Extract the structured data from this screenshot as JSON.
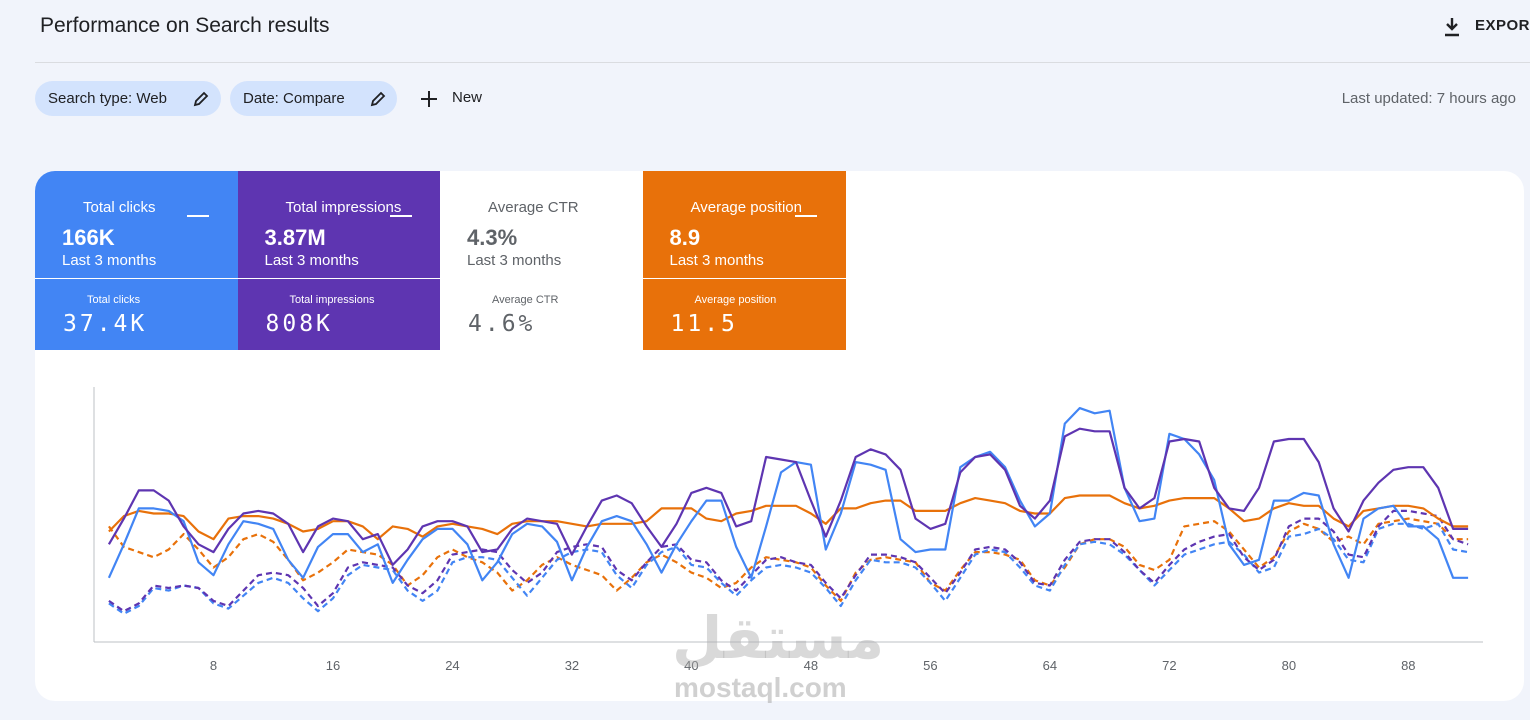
{
  "header": {
    "title": "Performance on Search results",
    "export": "EXPORT",
    "last_updated": "Last updated: 7 hours ago"
  },
  "filters": {
    "chips": [
      "Search type: Web",
      "Date: Compare"
    ],
    "new": "New"
  },
  "metrics": [
    {
      "label": "Total clicks",
      "value": "166K",
      "period": "Last 3 months",
      "compare_label": "Total clicks",
      "compare_value": "37.4K",
      "checked": true,
      "color": "#4285f4"
    },
    {
      "label": "Total impressions",
      "value": "3.87M",
      "period": "Last 3 months",
      "compare_label": "Total impressions",
      "compare_value": "808K",
      "checked": true,
      "color": "#5e35b1"
    },
    {
      "label": "Average CTR",
      "value": "4.3%",
      "period": "Last 3 months",
      "compare_label": "Average CTR",
      "compare_value": "4.6%",
      "checked": false,
      "color": "#ffffff"
    },
    {
      "label": "Average position",
      "value": "8.9",
      "period": "Last 3 months",
      "compare_label": "Average position",
      "compare_value": "11.5",
      "checked": true,
      "color": "#e8710a"
    }
  ],
  "watermark": {
    "arabic": "مستقل",
    "latin": "mostaql.com"
  },
  "chart_data": {
    "type": "line",
    "x": [
      1,
      2,
      3,
      4,
      5,
      6,
      7,
      8,
      9,
      10,
      11,
      12,
      13,
      14,
      15,
      16,
      17,
      18,
      19,
      20,
      21,
      22,
      23,
      24,
      25,
      26,
      27,
      28,
      29,
      30,
      31,
      32,
      33,
      34,
      35,
      36,
      37,
      38,
      39,
      40,
      41,
      42,
      43,
      44,
      45,
      46,
      47,
      48,
      49,
      50,
      51,
      52,
      53,
      54,
      55,
      56,
      57,
      58,
      59,
      60,
      61,
      62,
      63,
      64,
      65,
      66,
      67,
      68,
      69,
      70,
      71,
      72,
      73,
      74,
      75,
      76,
      77,
      78,
      79,
      80,
      81,
      82,
      83,
      84,
      85,
      86,
      87,
      88,
      89,
      90,
      91,
      92
    ],
    "xlim": [
      0,
      93
    ],
    "xticks": [
      8,
      16,
      24,
      32,
      40,
      48,
      56,
      64,
      72,
      80,
      88
    ],
    "ylim": [
      0,
      100
    ],
    "series": [
      {
        "color": "#e8710a",
        "style": "dashed",
        "values": [
          45,
          37,
          35,
          33,
          36,
          42,
          36,
          29,
          33,
          40,
          42,
          39,
          32,
          24,
          27,
          31,
          36,
          35,
          34,
          30,
          22,
          26,
          33,
          36,
          33,
          31,
          27,
          20,
          24,
          30,
          33,
          30,
          28,
          26,
          20,
          25,
          31,
          34,
          31,
          27,
          25,
          21,
          23,
          29,
          33,
          32,
          31,
          29,
          22,
          16,
          27,
          32,
          33,
          32,
          31,
          23,
          20,
          28,
          35,
          35,
          34,
          32,
          24,
          22,
          29,
          38,
          40,
          40,
          37,
          30,
          28,
          32,
          45,
          46,
          47,
          43,
          36,
          29,
          33,
          43,
          46,
          44,
          39,
          41,
          38,
          46,
          47,
          48,
          47,
          46,
          40,
          40
        ]
      },
      {
        "color": "#4285f4",
        "style": "dashed",
        "values": [
          15,
          11,
          14,
          21,
          20,
          22,
          21,
          15,
          13,
          18,
          23,
          25,
          23,
          17,
          12,
          17,
          26,
          30,
          29,
          28,
          20,
          16,
          20,
          31,
          33,
          33,
          32,
          25,
          18,
          25,
          32,
          35,
          36,
          35,
          26,
          21,
          30,
          35,
          37,
          30,
          29,
          23,
          18,
          24,
          29,
          30,
          29,
          27,
          21,
          14,
          24,
          32,
          31,
          31,
          29,
          23,
          16,
          25,
          34,
          36,
          35,
          29,
          22,
          20,
          30,
          38,
          39,
          38,
          34,
          28,
          22,
          28,
          34,
          36,
          38,
          39,
          34,
          27,
          29,
          41,
          42,
          44,
          40,
          32,
          31,
          44,
          46,
          46,
          44,
          46,
          36,
          35
        ]
      },
      {
        "color": "#5e35b1",
        "style": "dashed",
        "values": [
          16,
          12,
          15,
          22,
          21,
          22,
          21,
          16,
          14,
          20,
          26,
          27,
          26,
          21,
          14,
          19,
          29,
          31,
          30,
          29,
          22,
          19,
          24,
          34,
          35,
          36,
          35,
          28,
          23,
          27,
          35,
          37,
          38,
          37,
          28,
          24,
          31,
          37,
          38,
          32,
          31,
          24,
          20,
          26,
          32,
          33,
          31,
          30,
          23,
          17,
          26,
          34,
          34,
          33,
          31,
          25,
          19,
          27,
          36,
          37,
          36,
          31,
          23,
          22,
          32,
          39,
          40,
          40,
          35,
          28,
          23,
          30,
          36,
          39,
          41,
          42,
          33,
          28,
          32,
          45,
          48,
          48,
          43,
          34,
          33,
          45,
          51,
          51,
          50,
          49,
          40,
          38
        ]
      },
      {
        "color": "#e8710a",
        "style": "solid",
        "values": [
          43,
          49,
          51,
          50,
          50,
          49,
          43,
          40,
          48,
          49,
          49,
          48,
          46,
          43,
          44,
          47,
          47,
          45,
          40,
          45,
          44,
          41,
          45,
          46,
          45,
          44,
          42,
          46,
          47,
          47,
          47,
          46,
          45,
          46,
          46,
          46,
          47,
          52,
          52,
          52,
          48,
          47,
          50,
          51,
          53,
          53,
          53,
          50,
          46,
          52,
          52,
          54,
          55,
          55,
          51,
          51,
          51,
          54,
          56,
          55,
          54,
          51,
          50,
          50,
          56,
          57,
          57,
          57,
          54,
          52,
          53,
          55,
          56,
          56,
          56,
          52,
          47,
          48,
          52,
          54,
          53,
          53,
          48,
          45,
          51,
          52,
          53,
          53,
          52,
          48,
          45,
          45
        ]
      },
      {
        "color": "#4285f4",
        "style": "solid",
        "values": [
          25,
          38,
          52,
          52,
          51,
          47,
          31,
          26,
          38,
          47,
          46,
          44,
          32,
          25,
          37,
          42,
          42,
          35,
          38,
          23,
          32,
          40,
          44,
          44,
          38,
          24,
          31,
          42,
          46,
          45,
          39,
          24,
          37,
          47,
          49,
          47,
          38,
          27,
          38,
          47,
          55,
          55,
          37,
          25,
          45,
          66,
          70,
          69,
          36,
          50,
          70,
          69,
          67,
          40,
          35,
          36,
          36,
          68,
          72,
          74,
          68,
          55,
          45,
          50,
          85,
          91,
          89,
          90,
          60,
          47,
          48,
          81,
          79,
          73,
          63,
          38,
          30,
          32,
          55,
          55,
          58,
          57,
          38,
          25,
          48,
          52,
          53,
          45,
          45,
          40,
          25,
          25
        ]
      },
      {
        "color": "#5e35b1",
        "style": "solid",
        "values": [
          38,
          48,
          59,
          59,
          55,
          45,
          38,
          35,
          44,
          50,
          51,
          50,
          46,
          35,
          45,
          48,
          47,
          40,
          42,
          30,
          36,
          45,
          47,
          47,
          45,
          35,
          36,
          44,
          48,
          47,
          46,
          34,
          45,
          55,
          57,
          54,
          45,
          37,
          46,
          58,
          60,
          58,
          45,
          47,
          72,
          71,
          70,
          55,
          41,
          55,
          72,
          75,
          73,
          67,
          48,
          44,
          46,
          66,
          72,
          73,
          67,
          53,
          48,
          55,
          80,
          83,
          82,
          82,
          60,
          52,
          56,
          78,
          79,
          78,
          60,
          52,
          51,
          60,
          78,
          79,
          79,
          70,
          52,
          43,
          55,
          62,
          67,
          68,
          68,
          60,
          44,
          44
        ]
      }
    ]
  }
}
